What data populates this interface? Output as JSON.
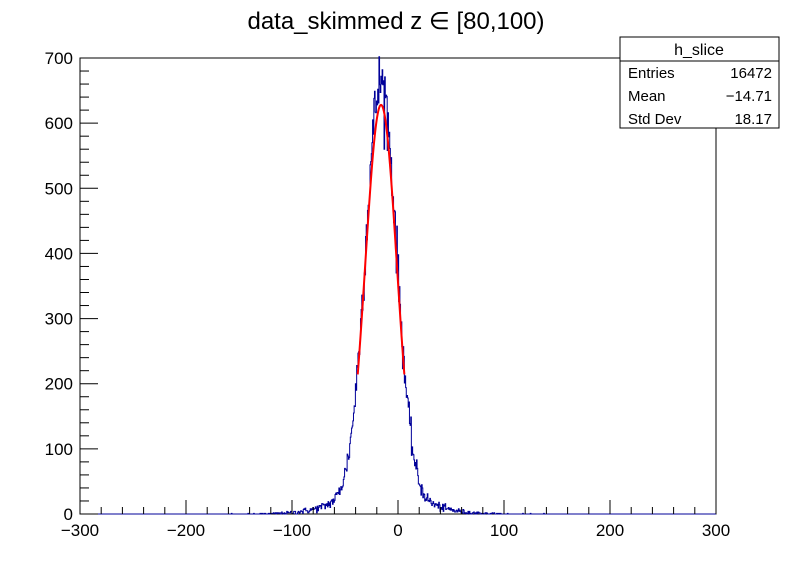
{
  "chart_data": {
    "type": "histogram",
    "title": "data_skimmed z  ∈ [80,100)",
    "xlabel": "",
    "ylabel": "",
    "xlim": [
      -300,
      300
    ],
    "ylim": [
      0,
      700
    ],
    "x_ticks": [
      "−300",
      "−200",
      "−100",
      "0",
      "100",
      "200",
      "300"
    ],
    "y_ticks": [
      "0",
      "100",
      "200",
      "300",
      "400",
      "500",
      "600",
      "700"
    ],
    "histogram": {
      "name": "h_slice",
      "color": "#000099",
      "bin_width": 0.6,
      "approx_shape": "peak ~630 near x=-15, std dev ~18, tails from ~-110 to ~90",
      "peak_x": -16,
      "peak_value": 672
    },
    "fit": {
      "type": "gaussian",
      "color": "#ff0000",
      "range": [
        -38,
        6
      ],
      "amplitude": 628,
      "mean": -16,
      "sigma": 15
    },
    "stats_box": {
      "title": "h_slice",
      "rows": [
        {
          "label": "Entries",
          "value": "16472"
        },
        {
          "label": "Mean",
          "value": "−14.71"
        },
        {
          "label": "Std Dev",
          "value": "18.17"
        }
      ]
    }
  }
}
